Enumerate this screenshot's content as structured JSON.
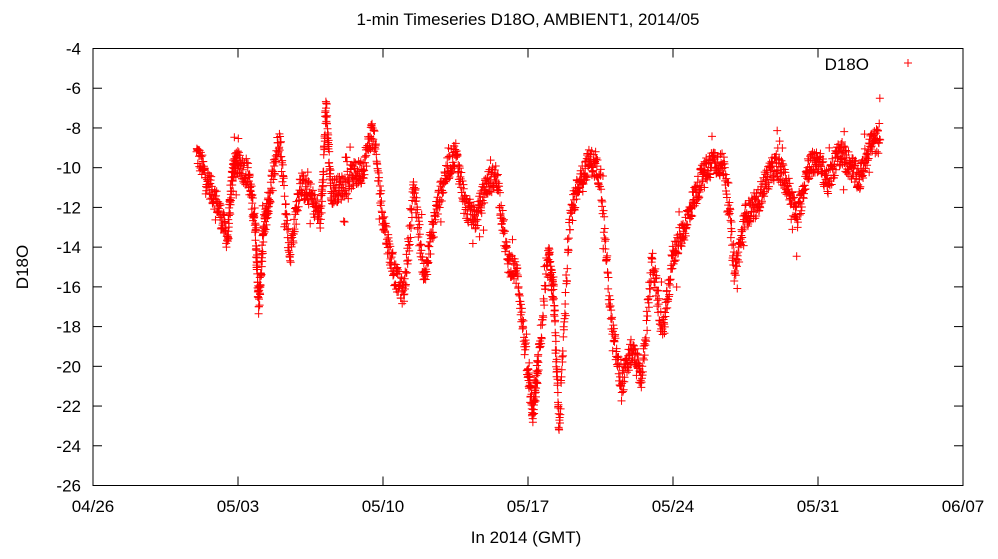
{
  "chart_data": {
    "type": "scatter",
    "title": "1-min Timeseries D18O, AMBIENT1, 2014/05",
    "xlabel": "In 2014 (GMT)",
    "ylabel": "D18O",
    "x_domain": [
      "04/26",
      "06/07"
    ],
    "x_ticks": [
      "04/26",
      "05/03",
      "05/10",
      "05/17",
      "05/24",
      "05/31",
      "06/07"
    ],
    "ylim": [
      -26,
      -4
    ],
    "y_ticks": [
      -4,
      -6,
      -8,
      -10,
      -12,
      -14,
      -16,
      -18,
      -20,
      -22,
      -24,
      -26
    ],
    "grid": false,
    "legend_position": "top-right",
    "marker": "+",
    "series": [
      {
        "name": "D18O",
        "color": "#ff0000",
        "points": [
          [
            "05/01 00:00",
            -9.2
          ],
          [
            "05/01 12:00",
            -10.6
          ],
          [
            "05/02 00:00",
            -11.8
          ],
          [
            "05/02 12:00",
            -13.6
          ],
          [
            "05/02 18:00",
            -10.0
          ],
          [
            "05/03 00:00",
            -9.8
          ],
          [
            "05/03 12:00",
            -10.4
          ],
          [
            "05/03 20:00",
            -12.8
          ],
          [
            "05/04 00:00",
            -17.0
          ],
          [
            "05/04 06:00",
            -13.0
          ],
          [
            "05/04 12:00",
            -11.6
          ],
          [
            "05/05 00:00",
            -8.3
          ],
          [
            "05/05 12:00",
            -14.5
          ],
          [
            "05/06 00:00",
            -10.8
          ],
          [
            "05/06 12:00",
            -11.4
          ],
          [
            "05/07 00:00",
            -12.6
          ],
          [
            "05/07 06:00",
            -7.0
          ],
          [
            "05/07 12:00",
            -11.2
          ],
          [
            "05/08 00:00",
            -11.0
          ],
          [
            "05/08 12:00",
            -10.4
          ],
          [
            "05/09 00:00",
            -10.2
          ],
          [
            "05/09 12:00",
            -8.0
          ],
          [
            "05/10 00:00",
            -12.5
          ],
          [
            "05/10 12:00",
            -15.2
          ],
          [
            "05/11 00:00",
            -16.4
          ],
          [
            "05/11 12:00",
            -11.0
          ],
          [
            "05/12 00:00",
            -15.6
          ],
          [
            "05/12 12:00",
            -12.4
          ],
          [
            "05/13 00:00",
            -10.4
          ],
          [
            "05/13 12:00",
            -9.2
          ],
          [
            "05/14 00:00",
            -12.0
          ],
          [
            "05/14 12:00",
            -12.6
          ],
          [
            "05/15 00:00",
            -10.8
          ],
          [
            "05/15 12:00",
            -10.4
          ],
          [
            "05/16 00:00",
            -14.6
          ],
          [
            "05/16 12:00",
            -15.4
          ],
          [
            "05/17 00:00",
            -20.5
          ],
          [
            "05/17 06:00",
            -22.4
          ],
          [
            "05/17 12:00",
            -19.8
          ],
          [
            "05/18 00:00",
            -14.4
          ],
          [
            "05/18 06:00",
            -16.6
          ],
          [
            "05/18 12:00",
            -23.2
          ],
          [
            "05/19 00:00",
            -12.6
          ],
          [
            "05/19 12:00",
            -10.6
          ],
          [
            "05/20 00:00",
            -9.6
          ],
          [
            "05/20 12:00",
            -10.4
          ],
          [
            "05/21 00:00",
            -17.6
          ],
          [
            "05/21 12:00",
            -21.0
          ],
          [
            "05/22 00:00",
            -19.2
          ],
          [
            "05/22 12:00",
            -20.6
          ],
          [
            "05/23 00:00",
            -14.6
          ],
          [
            "05/23 12:00",
            -18.4
          ],
          [
            "05/24 00:00",
            -14.4
          ],
          [
            "05/24 12:00",
            -13.2
          ],
          [
            "05/25 00:00",
            -11.6
          ],
          [
            "05/25 12:00",
            -10.2
          ],
          [
            "05/26 00:00",
            -9.6
          ],
          [
            "05/26 12:00",
            -10.0
          ],
          [
            "05/27 00:00",
            -15.2
          ],
          [
            "05/27 12:00",
            -12.4
          ],
          [
            "05/28 00:00",
            -12.0
          ],
          [
            "05/28 12:00",
            -10.6
          ],
          [
            "05/29 00:00",
            -9.8
          ],
          [
            "05/29 12:00",
            -10.8
          ],
          [
            "05/30 00:00",
            -12.6
          ],
          [
            "05/30 12:00",
            -10.0
          ],
          [
            "05/31 00:00",
            -9.6
          ],
          [
            "05/31 12:00",
            -10.8
          ],
          [
            "06/01 00:00",
            -9.2
          ],
          [
            "06/01 12:00",
            -9.8
          ],
          [
            "06/02 00:00",
            -10.6
          ],
          [
            "06/02 12:00",
            -8.8
          ],
          [
            "06/03 00:00",
            -8.6
          ]
        ]
      }
    ]
  }
}
